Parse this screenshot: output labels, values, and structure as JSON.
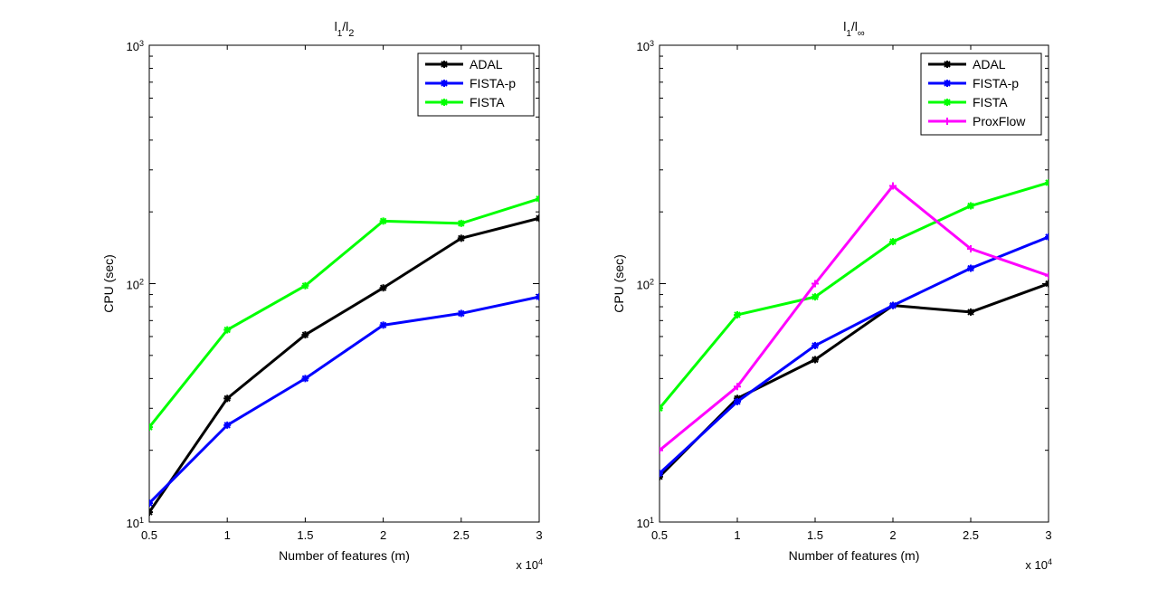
{
  "chart_data": [
    {
      "type": "line",
      "title_base": "l",
      "title_sub1": "1",
      "title_sep": "/l",
      "title_sub2": "2",
      "xlabel": "Number of features (m)",
      "ylabel": "CPU (sec)",
      "x": [
        0.5,
        1,
        1.5,
        2,
        2.5,
        3
      ],
      "xticklabels": [
        "0.5",
        "1",
        "1.5",
        "2",
        "2.5",
        "3"
      ],
      "xmultiplier_base": "x 10",
      "xmultiplier_exp": "4",
      "xlim": [
        0.5,
        3
      ],
      "yscale": "log",
      "ylim": [
        10,
        1000
      ],
      "yticks": [
        {
          "base": "10",
          "exp": "1"
        },
        {
          "base": "10",
          "exp": "2"
        },
        {
          "base": "10",
          "exp": "3"
        }
      ],
      "legend_location": "top-right",
      "series": [
        {
          "name": "ADAL",
          "color": "#000000",
          "marker": "star",
          "values": [
            11,
            33,
            61,
            96,
            155,
            188
          ]
        },
        {
          "name": "FISTA-p",
          "color": "#0000ff",
          "marker": "star",
          "values": [
            12,
            25.5,
            40,
            67,
            75,
            88
          ]
        },
        {
          "name": "FISTA",
          "color": "#00ff00",
          "marker": "star",
          "values": [
            25,
            64,
            98,
            183,
            179,
            227
          ]
        }
      ]
    },
    {
      "type": "line",
      "title_base": "l",
      "title_sub1": "1",
      "title_sep": "/l",
      "title_sub2": "∞",
      "xlabel": "Number of features (m)",
      "ylabel": "CPU (sec)",
      "x": [
        0.5,
        1,
        1.5,
        2,
        2.5,
        3
      ],
      "xticklabels": [
        "0.5",
        "1",
        "1.5",
        "2",
        "2.5",
        "3"
      ],
      "xmultiplier_base": "x 10",
      "xmultiplier_exp": "4",
      "xlim": [
        0.5,
        3
      ],
      "yscale": "log",
      "ylim": [
        10,
        1000
      ],
      "yticks": [
        {
          "base": "10",
          "exp": "1"
        },
        {
          "base": "10",
          "exp": "2"
        },
        {
          "base": "10",
          "exp": "3"
        }
      ],
      "legend_location": "top-right",
      "series": [
        {
          "name": "ADAL",
          "color": "#000000",
          "marker": "star",
          "values": [
            15.5,
            33,
            48,
            81,
            76,
            100
          ]
        },
        {
          "name": "FISTA-p",
          "color": "#0000ff",
          "marker": "star",
          "values": [
            16,
            32,
            55,
            81,
            116,
            157
          ]
        },
        {
          "name": "FISTA",
          "color": "#00ff00",
          "marker": "star",
          "values": [
            30,
            74,
            88,
            150,
            212,
            265
          ]
        },
        {
          "name": "ProxFlow",
          "color": "#ff00ff",
          "marker": "plus",
          "values": [
            20,
            37,
            100,
            257,
            140,
            108
          ]
        }
      ]
    }
  ]
}
